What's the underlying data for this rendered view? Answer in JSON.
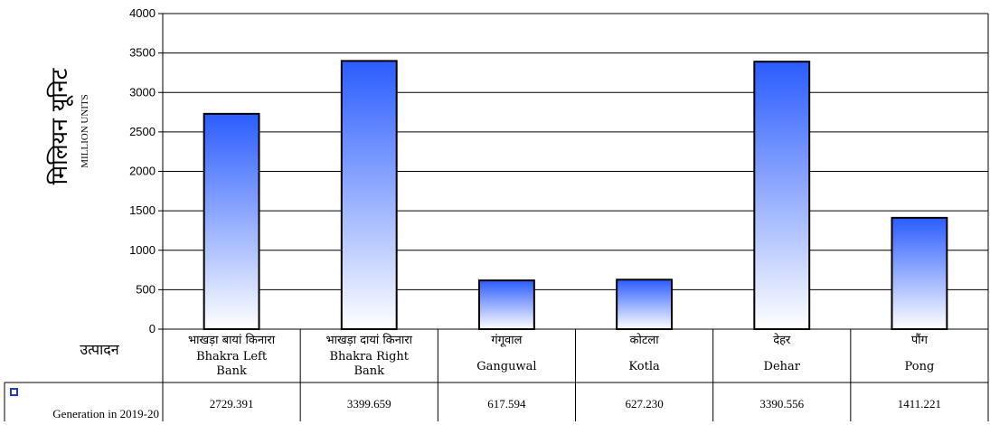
{
  "chart_data": {
    "type": "bar",
    "ylabel_hindi": "मिलियन यूनिट",
    "ylabel": "MILLION UNITS",
    "row_header_hindi": "उत्पादन",
    "ylim": [
      0,
      4000
    ],
    "yticks": [
      "0",
      "500",
      "1000",
      "1500",
      "2000",
      "2500",
      "3000",
      "3500",
      "4000"
    ],
    "grid": true,
    "categories": [
      {
        "hindi": "भाखड़ा बायां किनारा",
        "english": [
          "Bhakra Left",
          "Bank"
        ]
      },
      {
        "hindi": "भाखड़ा दायां किनारा",
        "english": [
          "Bhakra Right",
          "Bank"
        ]
      },
      {
        "hindi": "गंगूवाल",
        "english": [
          "Ganguwal"
        ]
      },
      {
        "hindi": "कोटला",
        "english": [
          "Kotla"
        ]
      },
      {
        "hindi": "देहर",
        "english": [
          "Dehar"
        ]
      },
      {
        "hindi": "पौंग",
        "english": [
          "Pong"
        ]
      }
    ],
    "series": [
      {
        "name": "Generation in 2019-20",
        "values": [
          2729.391,
          3399.659,
          617.594,
          627.23,
          3390.556,
          1411.221
        ],
        "labels": [
          "2729.391",
          "3399.659",
          "617.594",
          "627.230",
          "3390.556",
          "1411.221"
        ]
      }
    ],
    "colors": {
      "bar_top": "#2b5cff",
      "bar_bottom": "#ffffff",
      "legend_key": "#1f3fbf"
    }
  }
}
